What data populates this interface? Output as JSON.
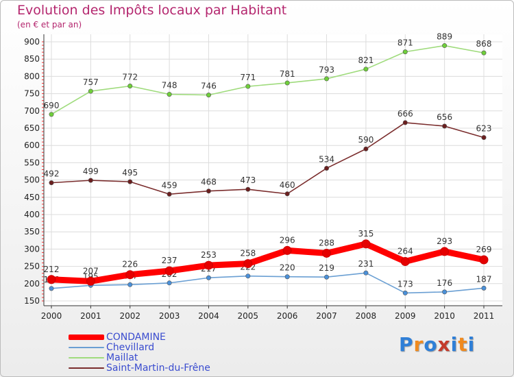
{
  "title": "Evolution des Impôts locaux par Habitant",
  "subtitle": "(en € et par an)",
  "brand": {
    "letters": [
      "P",
      "r",
      "o",
      "x",
      "i",
      "t",
      "i"
    ],
    "colors": [
      "#2f7fd7",
      "#f08a1e",
      "#2f7fd7",
      "#c43b2c",
      "#2f7fd7",
      "#f08a1e",
      "#2f7fd7"
    ]
  },
  "chart_data": {
    "type": "line",
    "x": [
      "2000",
      "2001",
      "2002",
      "2003",
      "2004",
      "2005",
      "2006",
      "2007",
      "2008",
      "2009",
      "2010",
      "2011"
    ],
    "ylim": [
      150,
      900
    ],
    "yticks": [
      150,
      200,
      250,
      300,
      350,
      400,
      450,
      500,
      550,
      600,
      650,
      700,
      750,
      800,
      850,
      900
    ],
    "grid": true,
    "legend": "bottom-left",
    "series": [
      {
        "name": "CONDAMINE",
        "color": "#ff0000",
        "marker_color": "#e50000",
        "emphasis": "thick",
        "values": [
          212,
          207,
          226,
          237,
          253,
          258,
          296,
          288,
          315,
          264,
          293,
          269
        ],
        "labels": [
          "212",
          "207",
          "226",
          "237",
          "253",
          "258",
          "296",
          "288",
          "315",
          "264",
          "293",
          "269"
        ]
      },
      {
        "name": "Chevillard",
        "color": "#6a9fd3",
        "marker_color": "#4a90d9",
        "emphasis": "normal",
        "values": [
          186,
          195,
          197,
          202,
          217,
          222,
          220,
          219,
          231,
          173,
          176,
          187
        ],
        "labels": [
          "186",
          "195",
          "197",
          "202",
          "217",
          "222",
          "220",
          "219",
          "231",
          "173",
          "176",
          "187"
        ]
      },
      {
        "name": "Maillat",
        "color": "#9fdb7c",
        "marker_color": "#6fcf3a",
        "emphasis": "normal",
        "values": [
          690,
          757,
          772,
          748,
          746,
          771,
          781,
          793,
          821,
          871,
          889,
          868
        ],
        "labels": [
          "690",
          "757",
          "772",
          "748",
          "746",
          "771",
          "781",
          "793",
          "821",
          "871",
          "889",
          "868"
        ]
      },
      {
        "name": "Saint-Martin-du-Frêne",
        "color": "#7a2c2c",
        "marker_color": "#6b1f1f",
        "emphasis": "normal",
        "values": [
          492,
          499,
          495,
          459,
          468,
          473,
          460,
          534,
          590,
          666,
          656,
          623
        ],
        "labels": [
          "492",
          "499",
          "495",
          "459",
          "468",
          "473",
          "460",
          "534",
          "590",
          "666",
          "656",
          "623"
        ]
      }
    ]
  }
}
